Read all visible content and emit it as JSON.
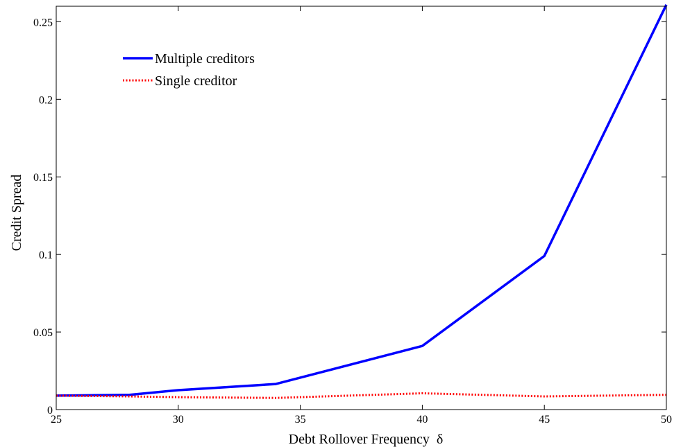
{
  "chart_data": {
    "type": "line",
    "title": "",
    "xlabel": "Debt Rollover Frequency",
    "xlabel_symbol": "δ",
    "ylabel": "Credit Spread",
    "xlim": [
      25,
      50
    ],
    "ylim": [
      0,
      0.26
    ],
    "xticks": [
      25,
      30,
      35,
      40,
      45,
      50
    ],
    "xtick_labels": [
      "25",
      "30",
      "35",
      "40",
      "45",
      "50"
    ],
    "yticks": [
      0,
      0.05,
      0.1,
      0.15,
      0.2,
      0.25
    ],
    "ytick_labels": [
      "0",
      "0.05",
      "0.1",
      "0.15",
      "0.2",
      "0.25"
    ],
    "grid": false,
    "legend_position": "top-left",
    "series": [
      {
        "name": "Multiple creditors",
        "color": "#0000ff",
        "style": "solid",
        "x": [
          25,
          28,
          30,
          34,
          40,
          45,
          50
        ],
        "y": [
          0.009,
          0.0095,
          0.0125,
          0.0165,
          0.041,
          0.099,
          0.261
        ]
      },
      {
        "name": "Single creditor",
        "color": "#ff0000",
        "style": "dotted",
        "x": [
          25,
          28,
          30,
          34,
          40,
          45,
          50
        ],
        "y": [
          0.009,
          0.0085,
          0.008,
          0.0075,
          0.0105,
          0.0085,
          0.0095
        ]
      }
    ]
  }
}
